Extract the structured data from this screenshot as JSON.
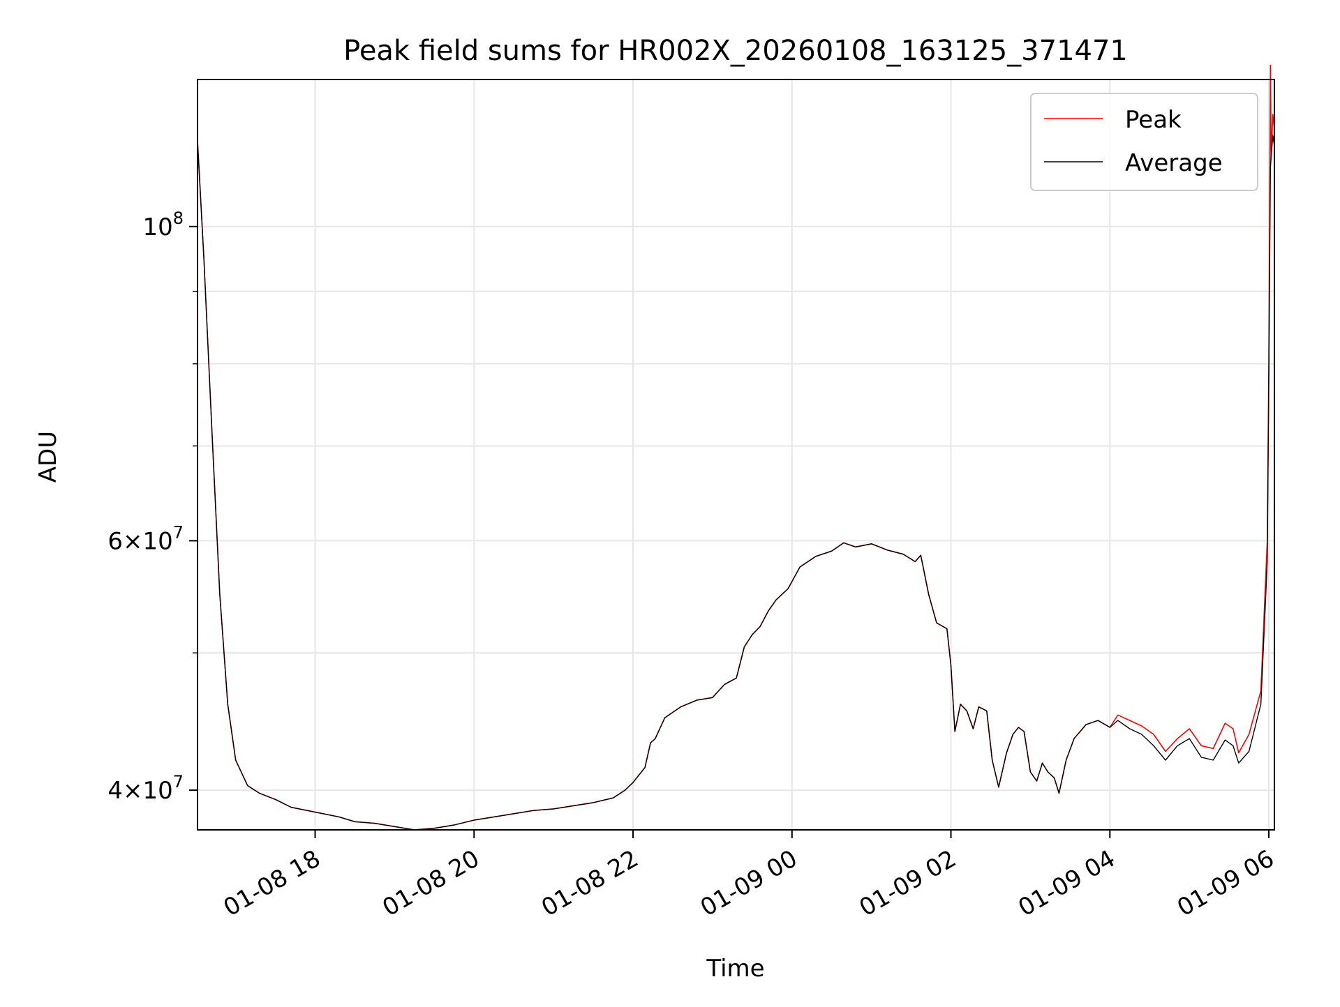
{
  "chart_data": {
    "type": "line",
    "title": "Peak field sums for HR002X_20260108_163125_371471",
    "xlabel": "Time",
    "ylabel": "ADU",
    "y_scale": "log",
    "grid": true,
    "legend_position": "top-right",
    "x_ticks": [
      "01-08 18",
      "01-08 20",
      "01-08 22",
      "01-09 00",
      "01-09 02",
      "01-09 04",
      "01-09 06"
    ],
    "x_tick_hours": [
      18,
      20,
      22,
      24,
      26,
      28,
      30
    ],
    "y_major_ticks": [
      {
        "value": 40000000,
        "mantissa": "4",
        "exponent": "7"
      },
      {
        "value": 60000000,
        "mantissa": "6",
        "exponent": "7"
      },
      {
        "value": 100000000,
        "mantissa": "",
        "exponent": "8"
      }
    ],
    "y_minor_ticks": [
      50000000,
      70000000,
      80000000,
      90000000
    ],
    "xlim_hours": [
      16.52,
      30.07
    ],
    "ylim": [
      37500000,
      127000000
    ],
    "series": [
      {
        "name": "Peak",
        "color": "#ff0000",
        "points": [
          [
            16.52,
            115000000
          ],
          [
            16.6,
            95000000
          ],
          [
            16.7,
            72000000
          ],
          [
            16.8,
            55000000
          ],
          [
            16.9,
            46000000
          ],
          [
            17.0,
            42000000
          ],
          [
            17.15,
            40300000
          ],
          [
            17.3,
            39800000
          ],
          [
            17.5,
            39400000
          ],
          [
            17.7,
            38900000
          ],
          [
            17.9,
            38700000
          ],
          [
            18.1,
            38500000
          ],
          [
            18.3,
            38300000
          ],
          [
            18.5,
            38000000
          ],
          [
            18.75,
            37900000
          ],
          [
            19.0,
            37700000
          ],
          [
            19.25,
            37500000
          ],
          [
            19.5,
            37600000
          ],
          [
            19.75,
            37800000
          ],
          [
            20.0,
            38100000
          ],
          [
            20.25,
            38300000
          ],
          [
            20.5,
            38500000
          ],
          [
            20.75,
            38700000
          ],
          [
            21.0,
            38800000
          ],
          [
            21.25,
            39000000
          ],
          [
            21.5,
            39200000
          ],
          [
            21.75,
            39500000
          ],
          [
            21.9,
            40000000
          ],
          [
            22.0,
            40500000
          ],
          [
            22.15,
            41500000
          ],
          [
            22.22,
            43200000
          ],
          [
            22.28,
            43500000
          ],
          [
            22.4,
            45000000
          ],
          [
            22.6,
            45800000
          ],
          [
            22.8,
            46300000
          ],
          [
            23.0,
            46500000
          ],
          [
            23.15,
            47500000
          ],
          [
            23.3,
            48000000
          ],
          [
            23.4,
            50500000
          ],
          [
            23.5,
            51500000
          ],
          [
            23.6,
            52200000
          ],
          [
            23.7,
            53500000
          ],
          [
            23.8,
            54500000
          ],
          [
            23.95,
            55500000
          ],
          [
            24.1,
            57500000
          ],
          [
            24.3,
            58500000
          ],
          [
            24.5,
            59000000
          ],
          [
            24.65,
            59800000
          ],
          [
            24.8,
            59400000
          ],
          [
            25.0,
            59700000
          ],
          [
            25.2,
            59100000
          ],
          [
            25.4,
            58700000
          ],
          [
            25.55,
            58000000
          ],
          [
            25.62,
            58600000
          ],
          [
            25.72,
            55000000
          ],
          [
            25.82,
            52500000
          ],
          [
            25.95,
            52000000
          ],
          [
            26.0,
            49000000
          ],
          [
            26.05,
            44000000
          ],
          [
            26.12,
            46000000
          ],
          [
            26.2,
            45500000
          ],
          [
            26.28,
            44200000
          ],
          [
            26.35,
            45800000
          ],
          [
            26.45,
            45500000
          ],
          [
            26.52,
            42000000
          ],
          [
            26.6,
            40200000
          ],
          [
            26.7,
            42500000
          ],
          [
            26.78,
            43800000
          ],
          [
            26.85,
            44300000
          ],
          [
            26.92,
            44000000
          ],
          [
            27.0,
            41200000
          ],
          [
            27.08,
            40600000
          ],
          [
            27.15,
            41800000
          ],
          [
            27.22,
            41200000
          ],
          [
            27.3,
            40800000
          ],
          [
            27.36,
            39800000
          ],
          [
            27.45,
            42000000
          ],
          [
            27.55,
            43500000
          ],
          [
            27.7,
            44500000
          ],
          [
            27.85,
            44800000
          ],
          [
            28.0,
            44300000
          ],
          [
            28.1,
            45200000
          ],
          [
            28.25,
            44800000
          ],
          [
            28.4,
            44400000
          ],
          [
            28.55,
            43800000
          ],
          [
            28.7,
            42600000
          ],
          [
            28.85,
            43500000
          ],
          [
            29.0,
            44200000
          ],
          [
            29.15,
            43000000
          ],
          [
            29.3,
            42800000
          ],
          [
            29.45,
            44600000
          ],
          [
            29.55,
            44200000
          ],
          [
            29.62,
            42500000
          ],
          [
            29.75,
            43800000
          ],
          [
            29.9,
            47000000
          ],
          [
            29.98,
            60000000
          ],
          [
            30.0,
            80000000
          ],
          [
            30.02,
            130000000
          ],
          [
            30.03,
            112000000
          ],
          [
            30.05,
            120000000
          ],
          [
            30.07,
            117000000
          ]
        ]
      },
      {
        "name": "Average",
        "color": "#000000",
        "points": [
          [
            16.52,
            115000000
          ],
          [
            16.6,
            95000000
          ],
          [
            16.7,
            72000000
          ],
          [
            16.8,
            55000000
          ],
          [
            16.9,
            46000000
          ],
          [
            17.0,
            42000000
          ],
          [
            17.15,
            40300000
          ],
          [
            17.3,
            39800000
          ],
          [
            17.5,
            39400000
          ],
          [
            17.7,
            38900000
          ],
          [
            17.9,
            38700000
          ],
          [
            18.1,
            38500000
          ],
          [
            18.3,
            38300000
          ],
          [
            18.5,
            38000000
          ],
          [
            18.75,
            37900000
          ],
          [
            19.0,
            37700000
          ],
          [
            19.25,
            37500000
          ],
          [
            19.5,
            37600000
          ],
          [
            19.75,
            37800000
          ],
          [
            20.0,
            38100000
          ],
          [
            20.25,
            38300000
          ],
          [
            20.5,
            38500000
          ],
          [
            20.75,
            38700000
          ],
          [
            21.0,
            38800000
          ],
          [
            21.25,
            39000000
          ],
          [
            21.5,
            39200000
          ],
          [
            21.75,
            39500000
          ],
          [
            21.9,
            40000000
          ],
          [
            22.0,
            40500000
          ],
          [
            22.15,
            41500000
          ],
          [
            22.22,
            43200000
          ],
          [
            22.28,
            43500000
          ],
          [
            22.4,
            45000000
          ],
          [
            22.6,
            45800000
          ],
          [
            22.8,
            46300000
          ],
          [
            23.0,
            46500000
          ],
          [
            23.15,
            47500000
          ],
          [
            23.3,
            48000000
          ],
          [
            23.4,
            50500000
          ],
          [
            23.5,
            51500000
          ],
          [
            23.6,
            52200000
          ],
          [
            23.7,
            53500000
          ],
          [
            23.8,
            54500000
          ],
          [
            23.95,
            55500000
          ],
          [
            24.1,
            57500000
          ],
          [
            24.3,
            58500000
          ],
          [
            24.5,
            59000000
          ],
          [
            24.65,
            59800000
          ],
          [
            24.8,
            59400000
          ],
          [
            25.0,
            59700000
          ],
          [
            25.2,
            59100000
          ],
          [
            25.4,
            58700000
          ],
          [
            25.55,
            58000000
          ],
          [
            25.62,
            58600000
          ],
          [
            25.72,
            55000000
          ],
          [
            25.82,
            52500000
          ],
          [
            25.95,
            52000000
          ],
          [
            26.0,
            49000000
          ],
          [
            26.05,
            44000000
          ],
          [
            26.12,
            46000000
          ],
          [
            26.2,
            45500000
          ],
          [
            26.28,
            44200000
          ],
          [
            26.35,
            45800000
          ],
          [
            26.45,
            45500000
          ],
          [
            26.52,
            42000000
          ],
          [
            26.6,
            40200000
          ],
          [
            26.7,
            42500000
          ],
          [
            26.78,
            43800000
          ],
          [
            26.85,
            44300000
          ],
          [
            26.92,
            44000000
          ],
          [
            27.0,
            41200000
          ],
          [
            27.08,
            40600000
          ],
          [
            27.15,
            41800000
          ],
          [
            27.22,
            41200000
          ],
          [
            27.3,
            40800000
          ],
          [
            27.36,
            39800000
          ],
          [
            27.45,
            42000000
          ],
          [
            27.55,
            43500000
          ],
          [
            27.7,
            44500000
          ],
          [
            27.85,
            44800000
          ],
          [
            28.0,
            44300000
          ],
          [
            28.1,
            44800000
          ],
          [
            28.25,
            44200000
          ],
          [
            28.4,
            43800000
          ],
          [
            28.55,
            43000000
          ],
          [
            28.7,
            42000000
          ],
          [
            28.85,
            43000000
          ],
          [
            29.0,
            43500000
          ],
          [
            29.15,
            42200000
          ],
          [
            29.3,
            42000000
          ],
          [
            29.45,
            43400000
          ],
          [
            29.55,
            43000000
          ],
          [
            29.62,
            41800000
          ],
          [
            29.75,
            42600000
          ],
          [
            29.9,
            46000000
          ],
          [
            29.98,
            58000000
          ],
          [
            30.0,
            78000000
          ],
          [
            30.02,
            110000000
          ],
          [
            30.03,
            112000000
          ],
          [
            30.05,
            116000000
          ],
          [
            30.07,
            114000000
          ]
        ]
      }
    ]
  }
}
